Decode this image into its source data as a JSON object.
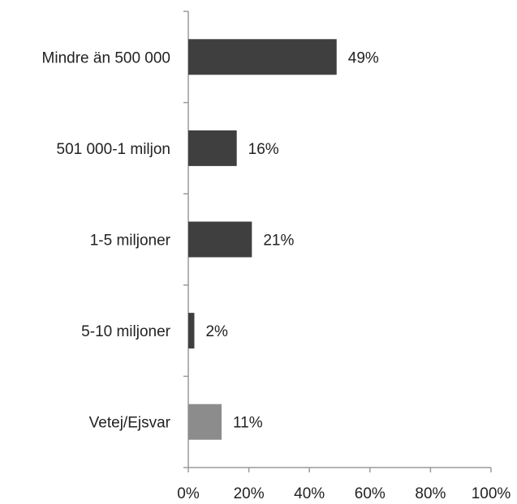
{
  "chart_data": {
    "type": "bar",
    "orientation": "horizontal",
    "title": "",
    "xlabel": "",
    "ylabel": "",
    "categories": [
      "Mindre än 500 000",
      "501 000-1 miljon",
      "1-5 miljoner",
      "5-10 miljoner",
      "Vetej/Ejsvar"
    ],
    "values": [
      49,
      16,
      21,
      2,
      11
    ],
    "value_labels": [
      "49%",
      "16%",
      "21%",
      "2%",
      "11%"
    ],
    "xlim": [
      0,
      100
    ],
    "x_ticks": [
      "0%",
      "20%",
      "40%",
      "60%",
      "80%",
      "100%"
    ],
    "grid": false,
    "legend": "none",
    "colors": {
      "bar": "#3f3f3f",
      "bar_highlight": "#8c8c8c",
      "axis": "#9a9a9a",
      "text": "#222222"
    },
    "highlight_index": 4
  }
}
